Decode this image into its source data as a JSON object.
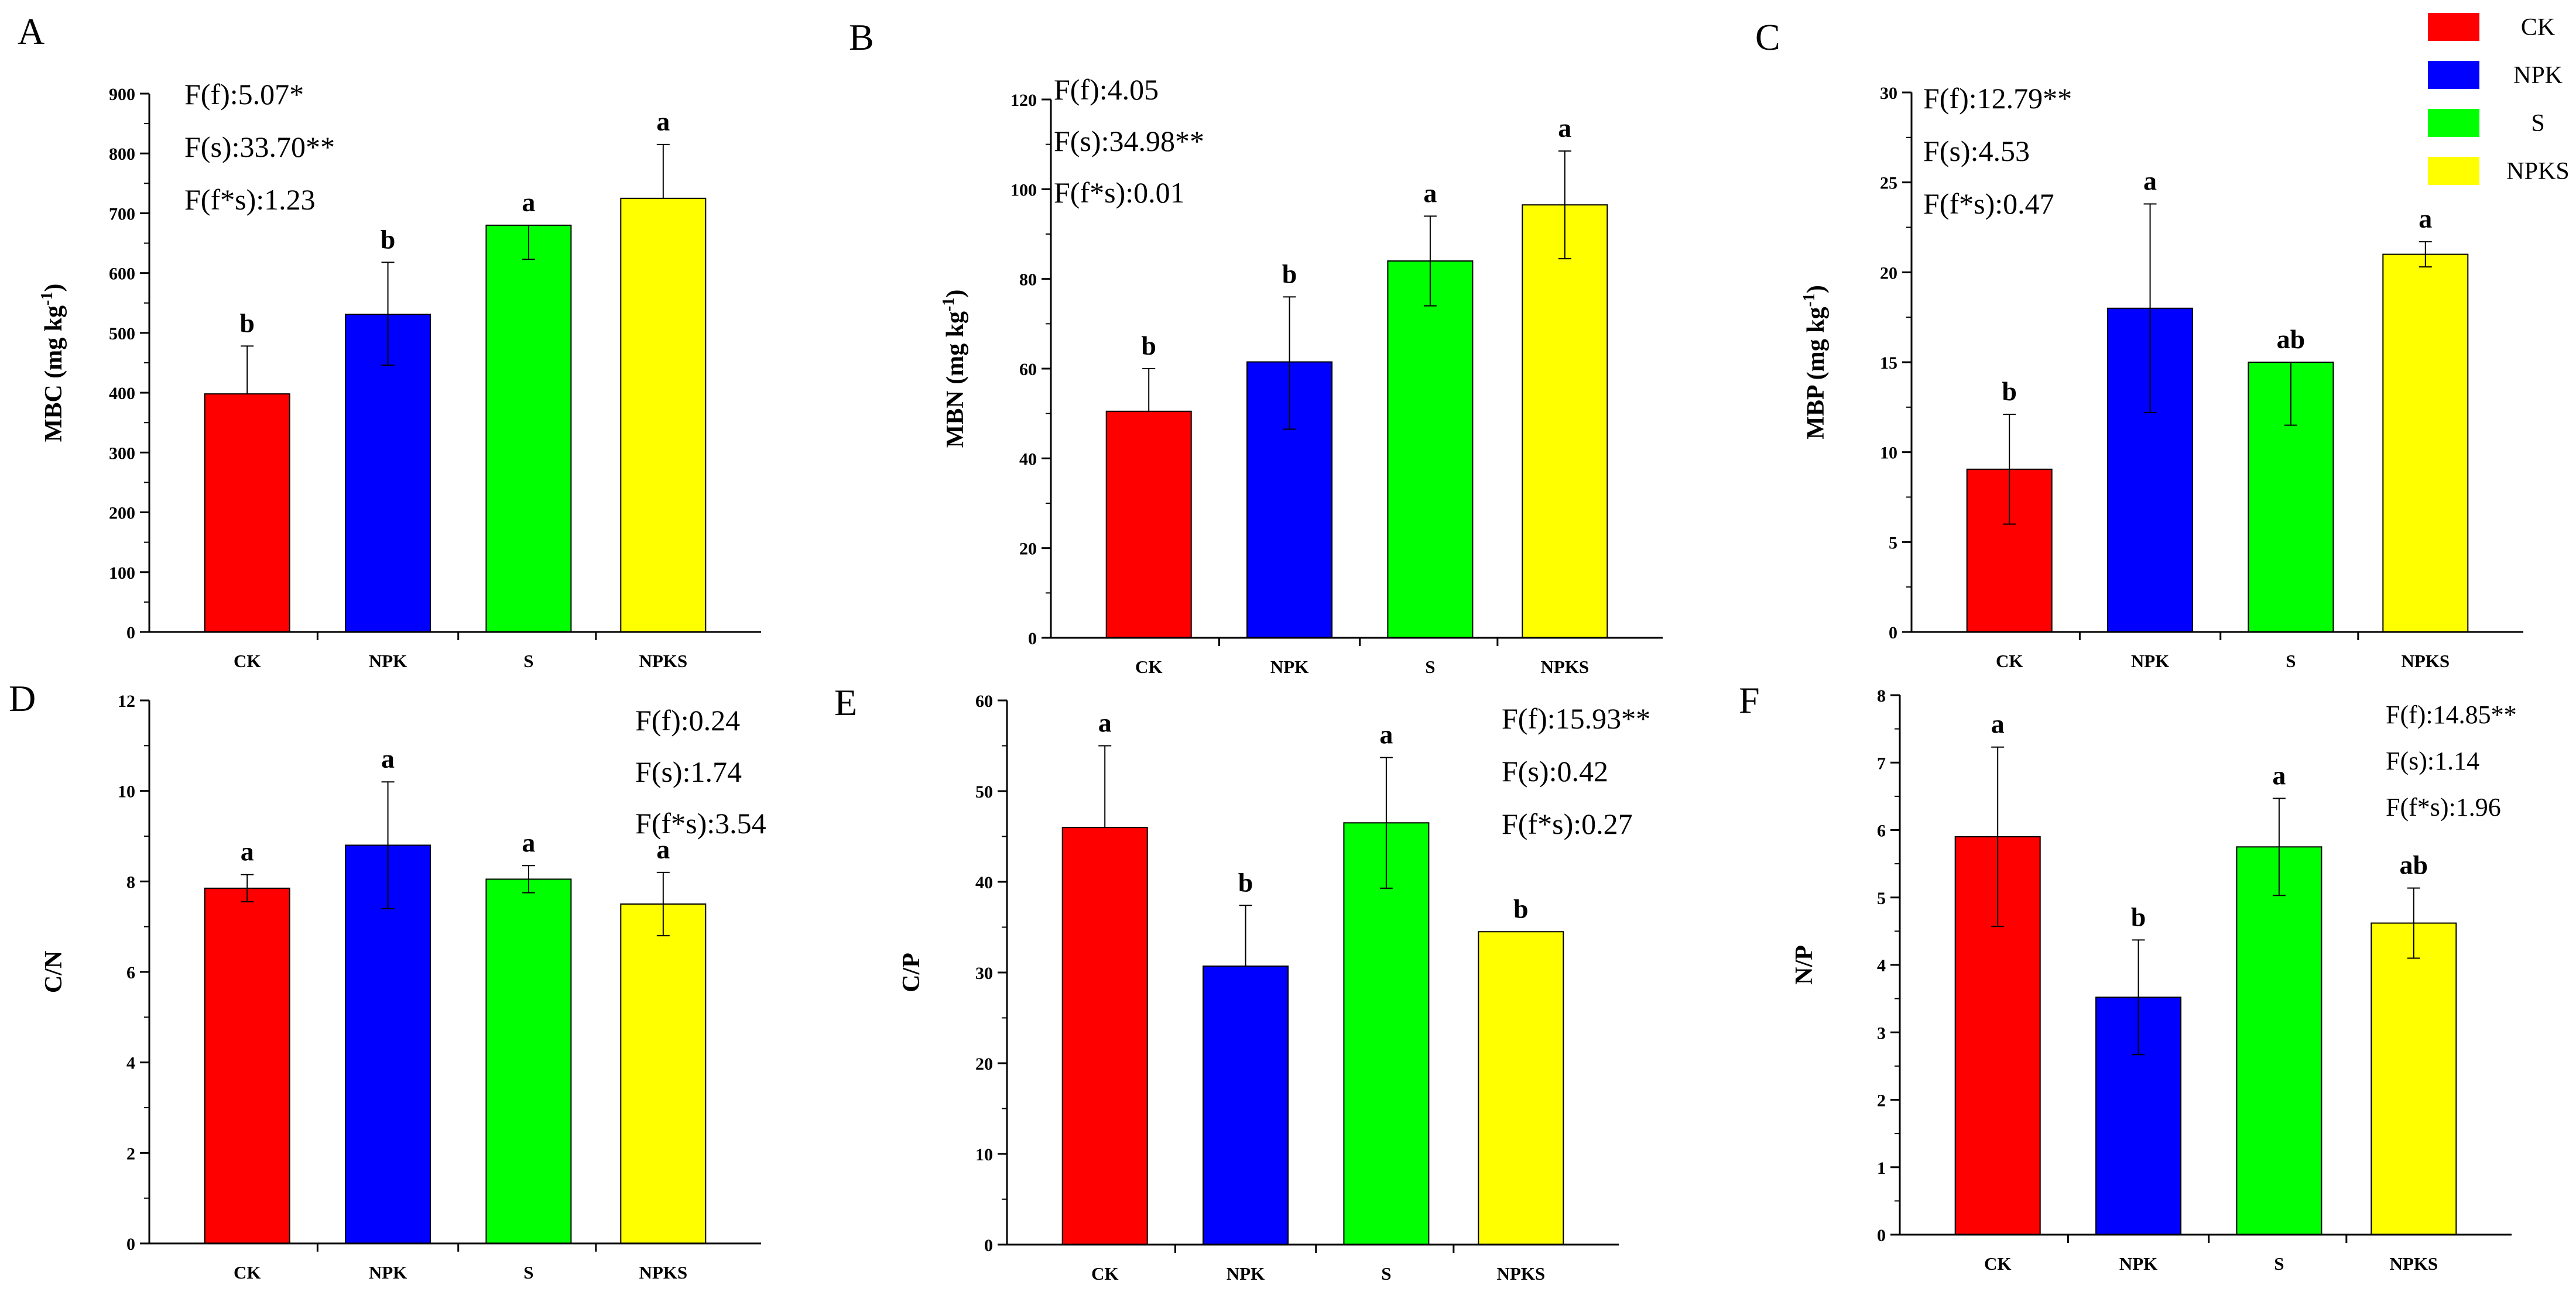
{
  "colors": {
    "CK": "#ff0000",
    "NPK": "#0000ff",
    "S": "#00ff00",
    "NPKS": "#ffff00"
  },
  "legend": [
    "CK",
    "NPK",
    "S",
    "NPKS"
  ],
  "chart_data": [
    {
      "panel": "A",
      "type": "bar",
      "categories": [
        "CK",
        "NPK",
        "S",
        "NPKS"
      ],
      "values": [
        398,
        531,
        680,
        725
      ],
      "err_up": [
        80,
        87,
        0,
        90
      ],
      "err_down": [
        0,
        85,
        57,
        0
      ],
      "letters": [
        "b",
        "b",
        "a",
        "a"
      ],
      "ylabel": "MBC (mg kg",
      "ylabel_sup": "-1",
      "ylabel_end": ")",
      "ylim": [
        0,
        900
      ],
      "yticks": [
        "0",
        "100",
        "200",
        "300",
        "400",
        "500",
        "600",
        "700",
        "800",
        "900"
      ],
      "stats": [
        "F(f):5.07*",
        "F(s):33.70**",
        "F(f*s):1.23"
      ]
    },
    {
      "panel": "B",
      "type": "bar",
      "categories": [
        "CK",
        "NPK",
        "S",
        "NPKS"
      ],
      "values": [
        50.5,
        61.5,
        84,
        96.5
      ],
      "err_up": [
        9.5,
        14.5,
        10,
        12
      ],
      "err_down": [
        0,
        15,
        10,
        12
      ],
      "letters": [
        "b",
        "b",
        "a",
        "a"
      ],
      "ylabel": "MBN (mg kg",
      "ylabel_sup": "-1",
      "ylabel_end": ")",
      "ylim": [
        0,
        120
      ],
      "yticks": [
        "0",
        "20",
        "40",
        "60",
        "80",
        "100",
        "120"
      ],
      "stats": [
        "F(f):4.05",
        "F(s):34.98**",
        "F(f*s):0.01"
      ]
    },
    {
      "panel": "C",
      "type": "bar",
      "categories": [
        "CK",
        "NPK",
        "S",
        "NPKS"
      ],
      "values": [
        9.05,
        18,
        15,
        21
      ],
      "err_up": [
        3.05,
        5.8,
        0,
        0.7
      ],
      "err_down": [
        3.05,
        5.8,
        3.5,
        0.7
      ],
      "letters": [
        "b",
        "a",
        "ab",
        "a"
      ],
      "ylabel": "MBP (mg kg",
      "ylabel_sup": "-1",
      "ylabel_end": ")",
      "ylim": [
        0,
        30
      ],
      "yticks": [
        "0",
        "5",
        "10",
        "15",
        "20",
        "25",
        "30"
      ],
      "stats": [
        "F(f):12.79**",
        "F(s):4.53",
        "F(f*s):0.47"
      ]
    },
    {
      "panel": "D",
      "type": "bar",
      "categories": [
        "CK",
        "NPK",
        "S",
        "NPKS"
      ],
      "values": [
        7.85,
        8.8,
        8.05,
        7.5
      ],
      "err_up": [
        0.3,
        1.4,
        0.3,
        0.7
      ],
      "err_down": [
        0.3,
        1.4,
        0.3,
        0.7
      ],
      "letters": [
        "a",
        "a",
        "a",
        "a"
      ],
      "ylabel": "C/N",
      "ylabel_sup": "",
      "ylabel_end": "",
      "ylim": [
        0,
        12
      ],
      "yticks": [
        "0",
        "2",
        "4",
        "6",
        "8",
        "10",
        "12"
      ],
      "stats": [
        "F(f):0.24",
        "F(s):1.74",
        "F(f*s):3.54"
      ]
    },
    {
      "panel": "E",
      "type": "bar",
      "categories": [
        "CK",
        "NPK",
        "S",
        "NPKS"
      ],
      "values": [
        46,
        30.7,
        46.5,
        34.5
      ],
      "err_up": [
        9,
        6.7,
        7.2,
        0
      ],
      "err_down": [
        0,
        0,
        7.2,
        0
      ],
      "letters": [
        "a",
        "b",
        "a",
        "b"
      ],
      "ylabel": "C/P",
      "ylabel_sup": "",
      "ylabel_end": "",
      "ylim": [
        0,
        60
      ],
      "yticks": [
        "0",
        "10",
        "20",
        "30",
        "40",
        "50",
        "60"
      ],
      "stats": [
        "F(f):15.93**",
        "F(s):0.42",
        "F(f*s):0.27"
      ]
    },
    {
      "panel": "F",
      "type": "bar",
      "categories": [
        "CK",
        "NPK",
        "S",
        "NPKS"
      ],
      "values": [
        5.9,
        3.52,
        5.75,
        4.62
      ],
      "err_up": [
        1.33,
        0.85,
        0.72,
        0.52
      ],
      "err_down": [
        1.33,
        0.85,
        0.72,
        0.52
      ],
      "letters": [
        "a",
        "b",
        "a",
        "ab"
      ],
      "ylabel": "N/P",
      "ylabel_sup": "",
      "ylabel_end": "",
      "ylim": [
        0,
        8
      ],
      "yticks": [
        "0",
        "1",
        "2",
        "3",
        "4",
        "5",
        "6",
        "7",
        "8"
      ],
      "stats": [
        "F(f):14.85**",
        "F(s):1.14",
        "F(f*s):1.96"
      ]
    }
  ]
}
